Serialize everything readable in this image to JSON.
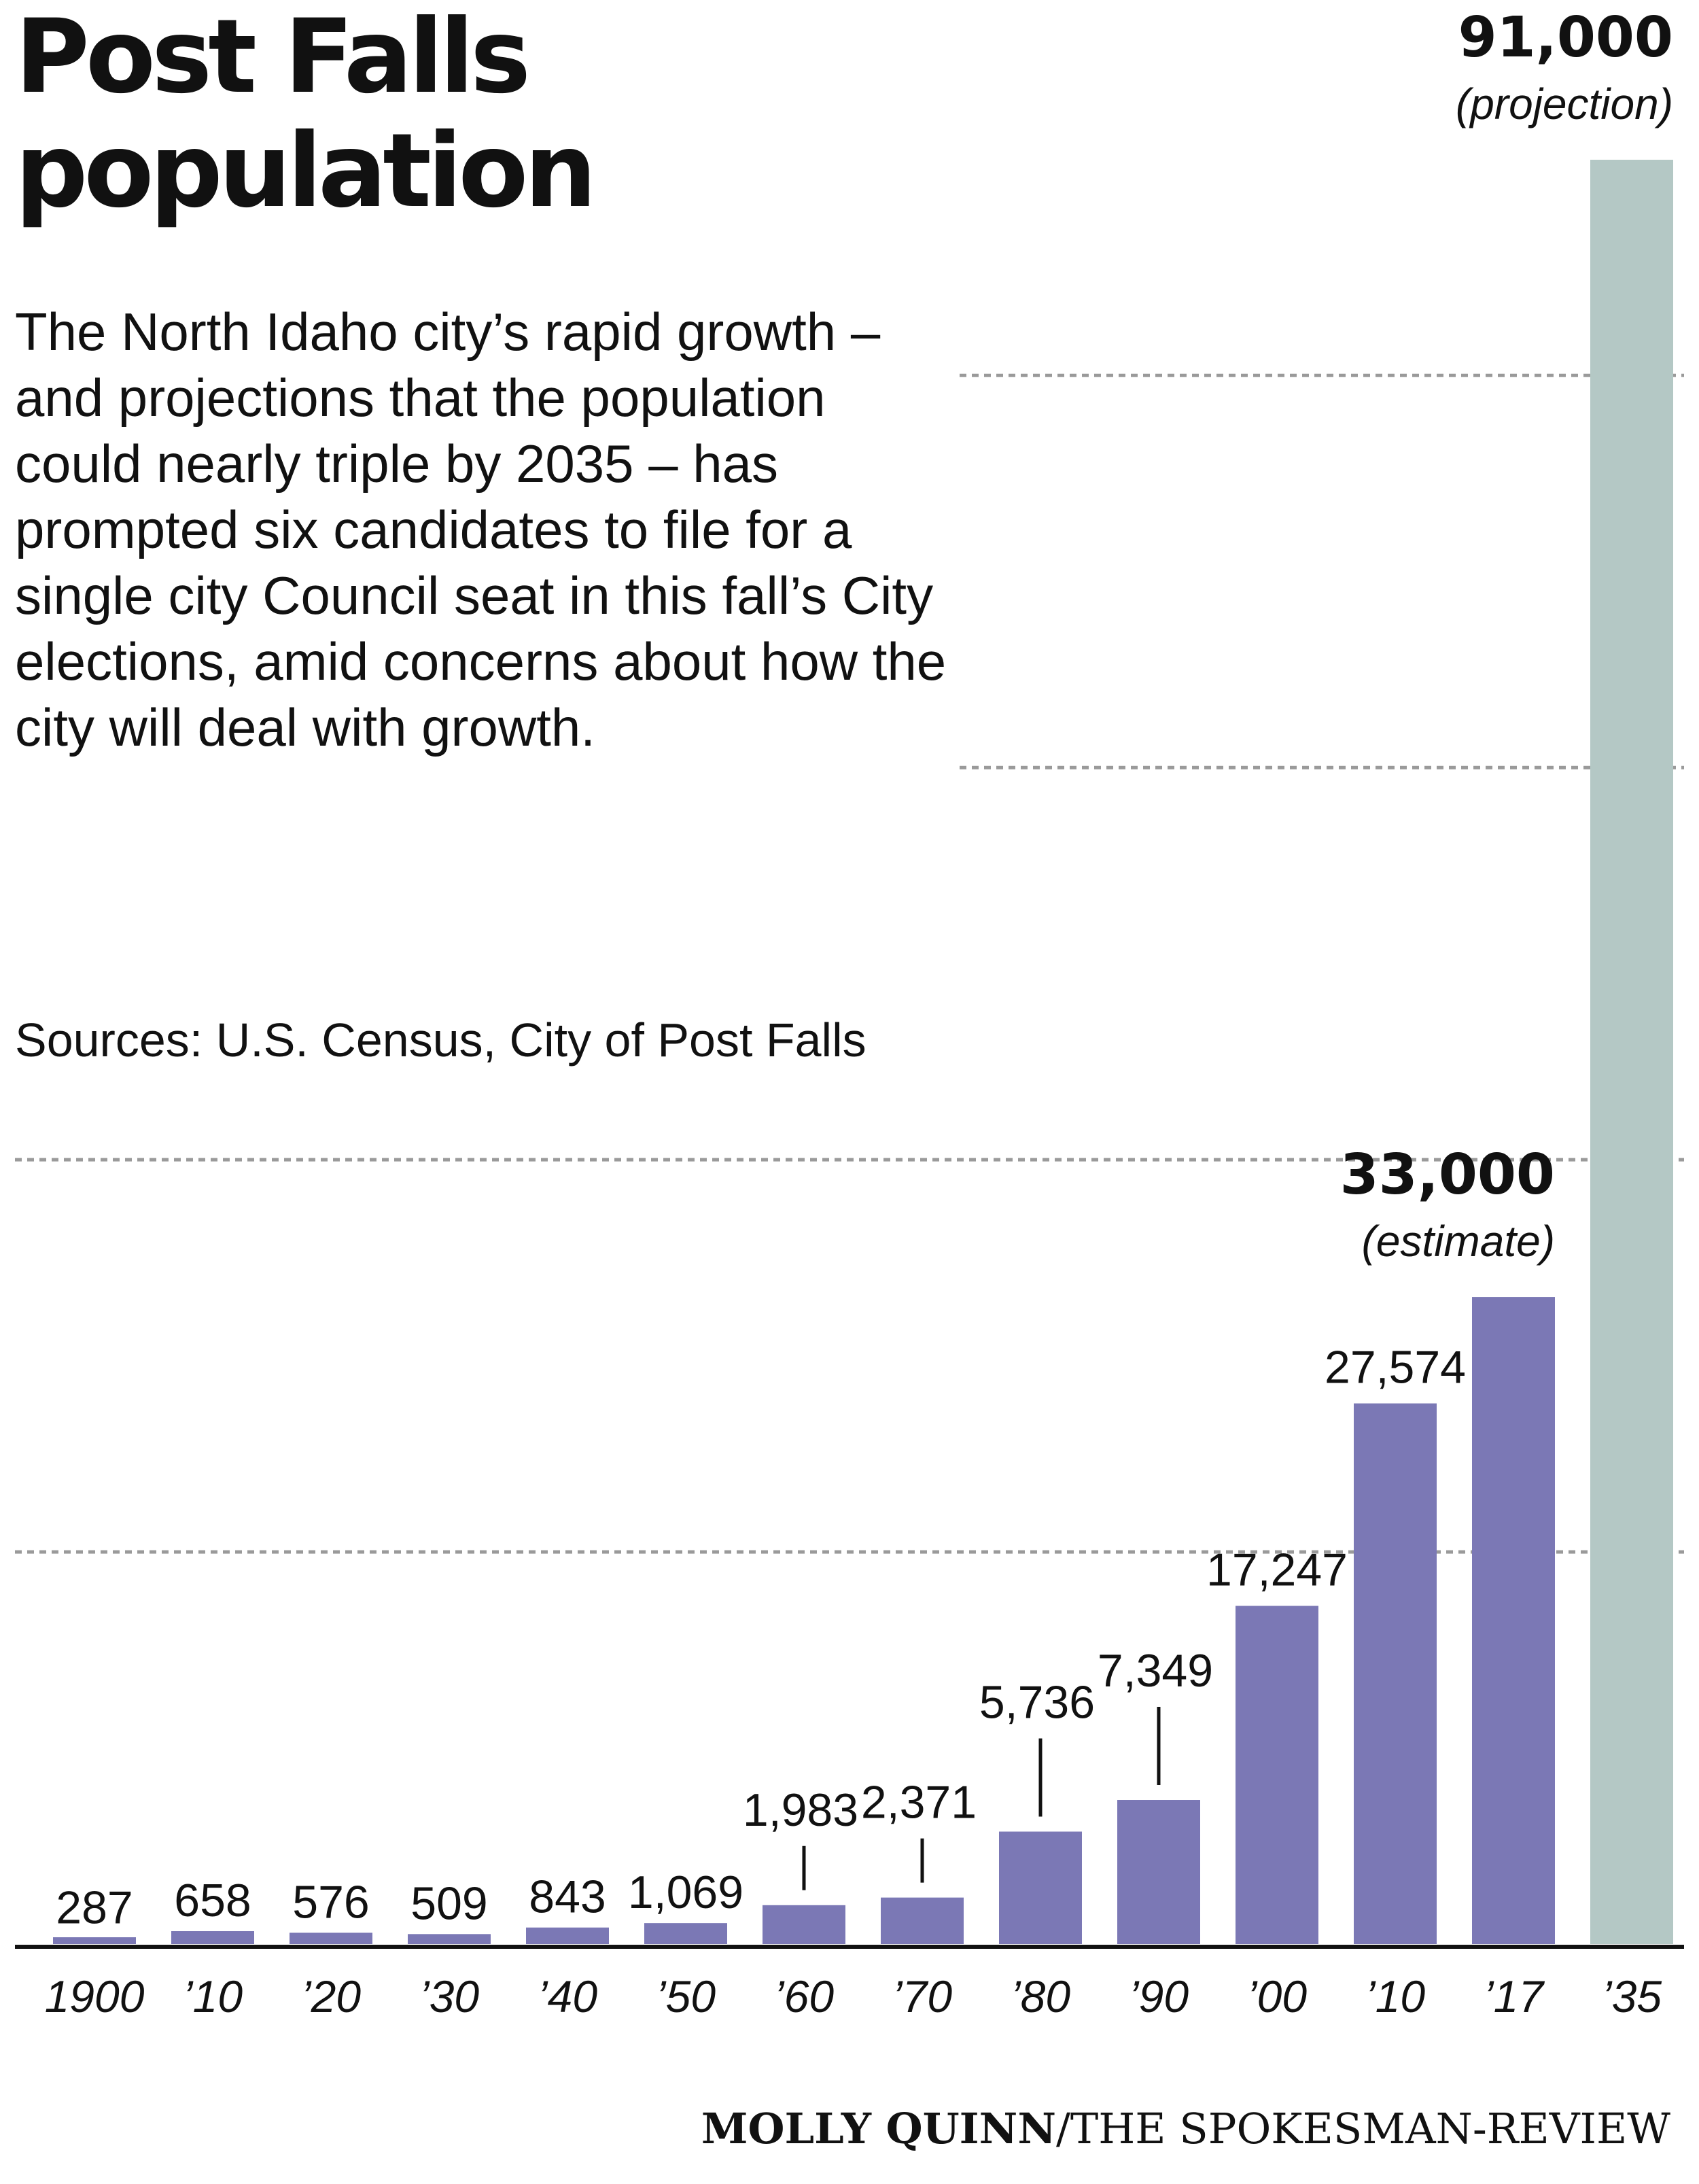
{
  "title": {
    "line1": "Post Falls",
    "line2": "population"
  },
  "description": "The North Idaho city’s rapid growth – and projections that the population could nearly triple by 2035 – has prompted six candidates to file for a single city Council seat in this fall’s City elections, amid concerns about how the city will deal with growth.",
  "sources": "Sources: U.S. Census, City of Post Falls",
  "credit": {
    "name": "MOLLY QUINN",
    "outlet": "/THE SPOKESMAN-REVIEW"
  },
  "colors": {
    "bar": "#7b78b5",
    "projection_bar": "#b4c8c5",
    "grid": "#9a9a9a",
    "axis": "#111111"
  },
  "chart_data": {
    "type": "bar",
    "title": "Post Falls population",
    "categories": [
      "1900",
      "’10",
      "’20",
      "’30",
      "’40",
      "’50",
      "’60",
      "’70",
      "’80",
      "’90",
      "’00",
      "’10",
      "’17",
      "’35"
    ],
    "values": [
      287,
      658,
      576,
      509,
      843,
      1069,
      1983,
      2371,
      5736,
      7349,
      17247,
      27574,
      33000,
      91000
    ],
    "labels": [
      "287",
      "658",
      "576",
      "509",
      "843",
      "1,069",
      "1,983",
      "2,371",
      "5,736",
      "7,349",
      "17,247",
      "27,574",
      "33,000",
      "91,000"
    ],
    "notes": [
      "",
      "",
      "",
      "",
      "",
      "",
      "",
      "",
      "",
      "",
      "",
      "",
      "(estimate)",
      "(projection)"
    ],
    "emphasis": [
      false,
      false,
      false,
      false,
      false,
      false,
      false,
      false,
      false,
      false,
      false,
      false,
      true,
      true
    ],
    "leader_lines": [
      false,
      false,
      false,
      false,
      false,
      false,
      true,
      true,
      true,
      true,
      false,
      false,
      false,
      false
    ],
    "projection": [
      false,
      false,
      false,
      false,
      false,
      false,
      false,
      false,
      false,
      false,
      false,
      false,
      false,
      true
    ],
    "ylim": [
      0,
      91000
    ],
    "grid": true,
    "gridlines": [
      20000,
      40000,
      60000,
      80000
    ],
    "xlabel": "",
    "ylabel": ""
  }
}
